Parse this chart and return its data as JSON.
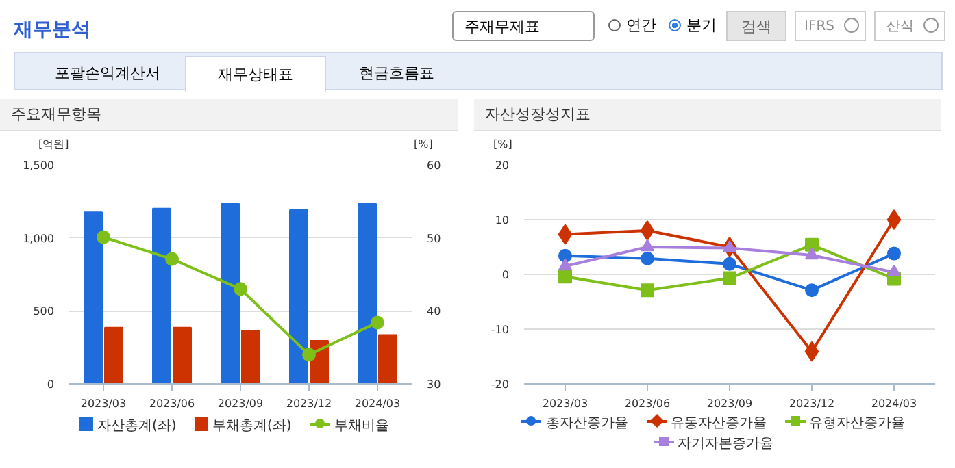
{
  "chart_data": [
    {
      "type": "bar",
      "title": "주요재무항목",
      "ylabel": "[억원]",
      "y2label": "[%]",
      "annotations": [
        "재무분석",
        "주재무제표",
        "연간",
        "분기",
        "검색",
        "IFRS",
        "산식",
        "포괄손익계산서",
        "재무상태표",
        "현금흐름표"
      ],
      "categories": [
        "2023/03",
        "2023/06",
        "2023/09",
        "2023/12",
        "2024/03"
      ],
      "series": [
        {
          "name": "자산총계(좌)",
          "color": "#1f6ddb",
          "values": [
            1175,
            1201,
            1234,
            1191,
            1234
          ]
        },
        {
          "name": "부채총계(좌)",
          "color": "#cc3300",
          "values": [
            385,
            385,
            365,
            295,
            335
          ]
        },
        {
          "name": "부채비율",
          "type": "line",
          "axis": "y2",
          "marker": "circle",
          "color": "#7fbf1a",
          "values": [
            50.1,
            47.1,
            43.0,
            34.0,
            38.4
          ]
        }
      ],
      "ylim": [
        0,
        1500
      ],
      "yticks": [
        0,
        {
          "value": 500,
          "label": "500"
        },
        {
          "value": 1000,
          "label": "1,000"
        },
        {
          "value": 1500,
          "label": "1,500"
        }
      ],
      "y2lim": [
        30,
        60
      ],
      "y2ticks": [
        30,
        40,
        50,
        60
      ],
      "grid": "y",
      "legend": "bottom"
    },
    {
      "type": "line",
      "title": "자산성장성지표",
      "ylabel": "[%]",
      "categories": [
        "2023/03",
        "2023/06",
        "2023/09",
        "2023/12",
        "2024/03"
      ],
      "series": [
        {
          "name": "총자산증가율",
          "marker": "circle",
          "color": "#1f6ddb",
          "values": [
            3.4,
            2.9,
            1.9,
            -2.9,
            3.8
          ]
        },
        {
          "name": "유동자산증가율",
          "marker": "diamond",
          "color": "#cc3300",
          "values": [
            7.3,
            8.0,
            5.0,
            -14.1,
            10.0
          ]
        },
        {
          "name": "유형자산증가율",
          "marker": "square",
          "color": "#7fbf1a",
          "values": [
            -0.4,
            -2.9,
            -0.7,
            5.4,
            -0.8
          ]
        },
        {
          "name": "자기자본증가율",
          "marker": "triangle",
          "color": "#a77fdc",
          "values": [
            1.5,
            5.0,
            4.8,
            3.5,
            0.4
          ]
        }
      ],
      "ylim": [
        -20,
        20
      ],
      "yticks": [
        -20,
        -10,
        0,
        10,
        20
      ],
      "grid": "y",
      "legend": "bottom"
    }
  ]
}
